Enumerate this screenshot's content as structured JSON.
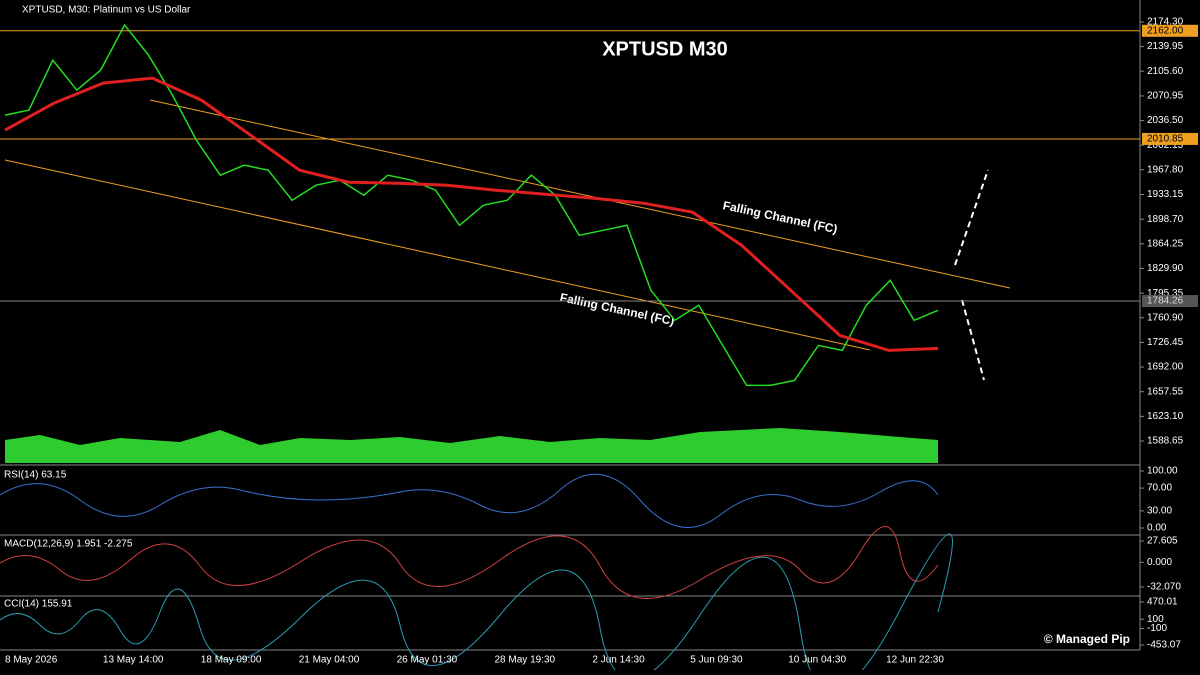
{
  "header": {
    "symbol_info": "XPTUSD, M30:  Platinum vs US Dollar",
    "big_title": "XPTUSD M30",
    "watermark": "© Managed Pip"
  },
  "price_axis": {
    "ticks": [
      {
        "value": 2174.3,
        "label": "2174.30"
      },
      {
        "value": 2139.95,
        "label": "2139.95"
      },
      {
        "value": 2105.6,
        "label": "2105.60"
      },
      {
        "value": 2070.95,
        "label": "2070.95"
      },
      {
        "value": 2036.5,
        "label": "2036.50"
      },
      {
        "value": 2002.15,
        "label": "2002.15"
      },
      {
        "value": 1967.8,
        "label": "1967.80"
      },
      {
        "value": 1933.15,
        "label": "1933.15"
      },
      {
        "value": 1898.7,
        "label": "1898.70"
      },
      {
        "value": 1864.25,
        "label": "1864.25"
      },
      {
        "value": 1829.9,
        "label": "1829.90"
      },
      {
        "value": 1795.35,
        "label": "1795.35"
      },
      {
        "value": 1760.9,
        "label": "1760.90"
      },
      {
        "value": 1726.45,
        "label": "1726.45"
      },
      {
        "value": 1692.0,
        "label": "1692.00"
      },
      {
        "value": 1657.55,
        "label": "1657.55"
      },
      {
        "value": 1623.1,
        "label": "1623.10"
      },
      {
        "value": 1588.65,
        "label": "1588.65"
      }
    ],
    "levels": [
      {
        "value": 2162.0,
        "label": "2162.00"
      },
      {
        "value": 2010.85,
        "label": "2010.85"
      },
      {
        "value": 1784.26,
        "label": "1784.26"
      }
    ]
  },
  "time_axis": {
    "labels": [
      "8 May 2026",
      "13 May 14:00",
      "18 May 09:00",
      "21 May 04:00",
      "26 May 01:30",
      "28 May 19:30",
      "2 Jun 14:30",
      "5 Jun 09:30",
      "10 Jun 04:30",
      "12 Jun 22:30"
    ]
  },
  "price_series": {
    "values": [
      2044.2,
      2051.2,
      2121.1,
      2079.1,
      2107.1,
      2170.1,
      2128.1,
      2072.1,
      2009.1,
      1960.2,
      1974.2,
      1967.2,
      1925.2,
      1946.2,
      1953.2,
      1932.2,
      1960.2,
      1953.2,
      1939.2,
      1890.2,
      1918.2,
      1925.2,
      1960.2,
      1932.2,
      1876.2,
      1883.2,
      1890.2,
      1799.3,
      1757.3,
      1778.3,
      1722.3,
      1666.3,
      1666.3,
      1673.3,
      1722.3,
      1715.3,
      1778.3,
      1813.3,
      1757.3,
      1771.3
    ]
  },
  "moving_average": {
    "values": [
      2023.2,
      2061.0,
      2088.9,
      2095.9,
      2065.1,
      2016.2,
      1967.2,
      1950.4,
      1949.0,
      1946.2,
      1939.2,
      1933.6,
      1928.0,
      1921.0,
      1908.4,
      1862.2,
      1799.3,
      1736.3,
      1715.3,
      1718.1
    ]
  },
  "annotations": [
    "Falling Channel (FC)",
    "Falling Channel (FC)"
  ],
  "rsi": {
    "label": "RSI(14) 63.15",
    "ticks": [
      {
        "value": 100,
        "label": "100.00"
      },
      {
        "value": 70,
        "label": "70.00"
      },
      {
        "value": 30,
        "label": "30.00"
      },
      {
        "value": 0,
        "label": "0.00"
      }
    ]
  },
  "macd": {
    "label": "MACD(12,26,9) 1.951 -2.275",
    "ticks": [
      {
        "value": 27.605,
        "label": "27.605"
      },
      {
        "value": 0,
        "label": "0.000"
      },
      {
        "value": -32.07,
        "label": "-32.070"
      }
    ]
  },
  "cci": {
    "label": "CCI(14) 155.91",
    "ticks": [
      {
        "value": 470.01,
        "label": "470.01"
      },
      {
        "value": 100,
        "label": "100"
      },
      {
        "value": -100,
        "label": "-100"
      },
      {
        "value": -453.07,
        "label": "-453.07"
      }
    ]
  }
}
